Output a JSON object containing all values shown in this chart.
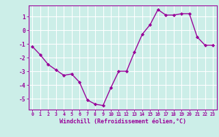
{
  "x": [
    0,
    1,
    2,
    3,
    4,
    5,
    6,
    7,
    8,
    9,
    10,
    11,
    12,
    13,
    14,
    15,
    16,
    17,
    18,
    19,
    20,
    21,
    22,
    23
  ],
  "y": [
    -1.2,
    -1.8,
    -2.5,
    -2.9,
    -3.3,
    -3.2,
    -3.8,
    -5.1,
    -5.4,
    -5.5,
    -4.2,
    -3.0,
    -3.0,
    -1.6,
    -0.3,
    0.4,
    1.5,
    1.1,
    1.1,
    1.2,
    1.2,
    -0.5,
    -1.1,
    -1.1
  ],
  "line_color": "#990099",
  "marker": "D",
  "marker_size": 2.2,
  "linewidth": 1.0,
  "xlabel": "Windchill (Refroidissement éolien,°C)",
  "xlabel_fontsize": 6.0,
  "ylabel_ticks": [
    -5,
    -4,
    -3,
    -2,
    -1,
    0,
    1
  ],
  "xtick_labels": [
    "0",
    "1",
    "2",
    "3",
    "4",
    "5",
    "6",
    "7",
    "8",
    "9",
    "10",
    "11",
    "12",
    "13",
    "14",
    "15",
    "16",
    "17",
    "18",
    "19",
    "20",
    "21",
    "22",
    "23"
  ],
  "xlim": [
    -0.5,
    23.5
  ],
  "ylim": [
    -5.8,
    1.8
  ],
  "bg_color": "#cceee8",
  "grid_color": "#ffffff",
  "tick_color": "#990099",
  "font_color": "#990099"
}
